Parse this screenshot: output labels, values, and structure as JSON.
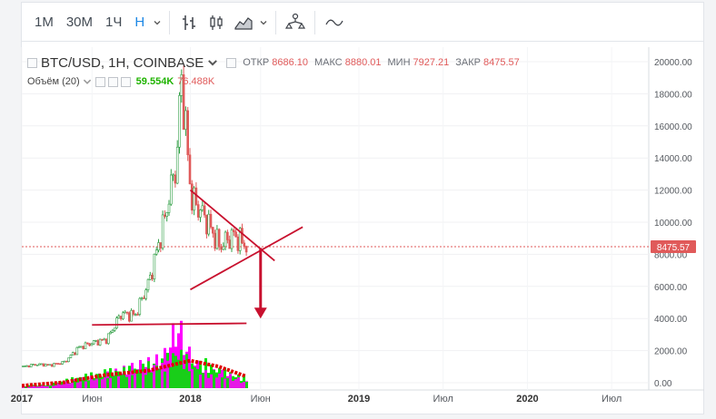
{
  "toolbar": {
    "intervals": [
      "1M",
      "30M",
      "1Ч",
      "Н"
    ],
    "active_interval": "Н"
  },
  "legend": {
    "symbol": "BTC/USD, 1H, COINBASE",
    "open_label": "ОТКР",
    "open": "8686.10",
    "high_label": "МАКС",
    "high": "8880.01",
    "low_label": "МИН",
    "low": "7927.21",
    "close_label": "ЗАКР",
    "close": "8475.57",
    "volume_name": "Объём (20)",
    "volume_value": "59.554K",
    "volume_ma": "76.488K"
  },
  "price_axis": {
    "ticks": [
      "20000.00",
      "18000.00",
      "16000.00",
      "14000.00",
      "12000.00",
      "10000.00",
      "8000.00",
      "6000.00",
      "4000.00",
      "2000.00",
      "0.00"
    ],
    "last_price_label": "8475.57"
  },
  "time_axis": {
    "labels": [
      {
        "text": "2017",
        "bold": true
      },
      {
        "text": "Июн",
        "bold": false
      },
      {
        "text": "2018",
        "bold": true
      },
      {
        "text": "Июн",
        "bold": false
      },
      {
        "text": "2019",
        "bold": true
      },
      {
        "text": "Июл",
        "bold": false
      },
      {
        "text": "2020",
        "bold": true
      },
      {
        "text": "Июл",
        "bold": false
      }
    ]
  },
  "colors": {
    "up": "#2f9e44",
    "down": "#e05a5a",
    "volume_up": "#00e400",
    "volume_down": "#ff00ff",
    "volume_ma": "#e00000",
    "annotation": "#c8102e",
    "accent": "#1e88e5"
  },
  "chart_data": {
    "type": "candlestick",
    "title": "BTC/USD, 1H, COINBASE",
    "x_range": [
      "2017-01",
      "2020-09"
    ],
    "ylim": [
      0,
      20000
    ],
    "last_price": 8475.57,
    "price_series": [
      {
        "date": "2017-01",
        "value": 1000
      },
      {
        "date": "2017-02",
        "value": 1150
      },
      {
        "date": "2017-03",
        "value": 1100
      },
      {
        "date": "2017-04",
        "value": 1300
      },
      {
        "date": "2017-05",
        "value": 2200
      },
      {
        "date": "2017-06",
        "value": 2500
      },
      {
        "date": "2017-07",
        "value": 2700
      },
      {
        "date": "2017-08",
        "value": 4300
      },
      {
        "date": "2017-09",
        "value": 4200
      },
      {
        "date": "2017-10",
        "value": 6300
      },
      {
        "date": "2017-11",
        "value": 9800
      },
      {
        "date": "2017-12",
        "value": 14000
      },
      {
        "date": "2017-12",
        "value": 19500
      },
      {
        "date": "2018-01",
        "value": 11500
      },
      {
        "date": "2018-02",
        "value": 10300
      },
      {
        "date": "2018-03",
        "value": 8500
      },
      {
        "date": "2018-04",
        "value": 9200
      },
      {
        "date": "2018-05",
        "value": 8500
      }
    ],
    "volume_series": [
      {
        "date": "2017-01",
        "up": 0.3,
        "down": 0.2
      },
      {
        "date": "2017-03",
        "up": 0.6,
        "down": 0.4
      },
      {
        "date": "2017-05",
        "up": 1.6,
        "down": 1.2
      },
      {
        "date": "2017-07",
        "up": 2.4,
        "down": 2.0
      },
      {
        "date": "2017-09",
        "up": 2.8,
        "down": 3.2
      },
      {
        "date": "2017-11",
        "up": 3.8,
        "down": 4.4
      },
      {
        "date": "2017-12",
        "up": 5.4,
        "down": 9.6
      },
      {
        "date": "2018-01",
        "up": 3.4,
        "down": 4.2
      },
      {
        "date": "2018-02",
        "up": 3.6,
        "down": 2.2
      },
      {
        "date": "2018-03",
        "up": 2.6,
        "down": 2.4
      },
      {
        "date": "2018-05",
        "up": 1.4,
        "down": 0.8
      }
    ],
    "volume_ma_series": [
      {
        "date": "2017-01",
        "value": 0.3
      },
      {
        "date": "2017-04",
        "value": 0.7
      },
      {
        "date": "2017-07",
        "value": 1.6
      },
      {
        "date": "2017-10",
        "value": 2.1
      },
      {
        "date": "2017-12",
        "value": 2.9
      },
      {
        "date": "2018-01",
        "value": 3.3
      },
      {
        "date": "2018-03",
        "value": 2.6
      },
      {
        "date": "2018-05",
        "value": 1.4
      }
    ],
    "annotations": [
      {
        "type": "trendline",
        "from": {
          "date": "2017-06",
          "value": 3600
        },
        "to": {
          "date": "2018-05",
          "value": 3700
        }
      },
      {
        "type": "trendline",
        "from": {
          "date": "2018-01",
          "value": 12000
        },
        "to": {
          "date": "2018-07",
          "value": 7600
        }
      },
      {
        "type": "trendline",
        "from": {
          "date": "2018-01",
          "value": 5800
        },
        "to": {
          "date": "2018-09",
          "value": 9700
        }
      },
      {
        "type": "arrow",
        "from": {
          "date": "2018-06",
          "value": 8400
        },
        "to": {
          "date": "2018-06",
          "value": 4000
        }
      }
    ]
  }
}
